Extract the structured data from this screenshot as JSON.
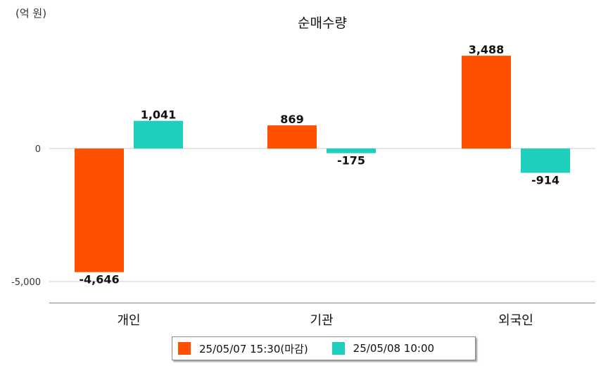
{
  "unit_label": "(억 원)",
  "chart_data": {
    "type": "bar",
    "title": "순매수량",
    "categories": [
      "개인",
      "기관",
      "외국인"
    ],
    "series": [
      {
        "name": "25/05/07 15:30(마감)",
        "color": "#ff5000",
        "values": [
          -4646,
          869,
          3488
        ],
        "labels": [
          "-4,646",
          "869",
          "3,488"
        ]
      },
      {
        "name": "25/05/08 10:00",
        "color": "#1ecfbe",
        "values": [
          1041,
          -175,
          -914
        ],
        "labels": [
          "1,041",
          "-175",
          "-914"
        ]
      }
    ],
    "y_ticks": [
      0,
      -5000
    ],
    "y_tick_labels": [
      "0",
      "-5,000"
    ],
    "ylim": [
      -5800,
      4000
    ],
    "grid": true,
    "legend_position": "bottom"
  }
}
